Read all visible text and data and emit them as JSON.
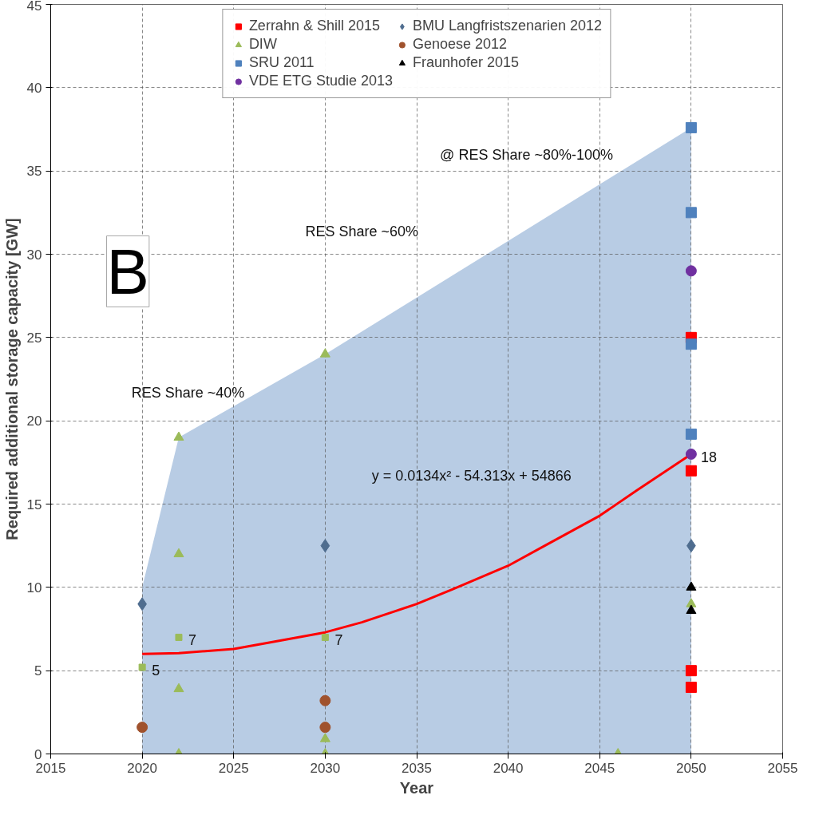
{
  "chart_data": {
    "type": "scatter",
    "xlabel": "Year",
    "ylabel": "Required additional storage capacity [GW]",
    "xlim": [
      2015,
      2055
    ],
    "ylim": [
      0,
      45
    ],
    "xticks": [
      2015,
      2020,
      2025,
      2030,
      2035,
      2040,
      2045,
      2050,
      2055
    ],
    "yticks": [
      0,
      5,
      10,
      15,
      20,
      25,
      30,
      35,
      40,
      45
    ],
    "grid": true,
    "legend": "top",
    "series": [
      {
        "type": "area",
        "color": "#b8cce4",
        "x": [
          2020,
          2022,
          2030,
          2050
        ],
        "values": [
          10,
          19,
          24,
          37.6
        ]
      },
      {
        "type": "line",
        "color": "#ff0000",
        "x": [
          2020,
          2022,
          2025,
          2027,
          2030,
          2032,
          2035,
          2037,
          2040,
          2042,
          2045,
          2047,
          2050
        ],
        "values": [
          6.0,
          6.05,
          6.3,
          6.7,
          7.3,
          7.9,
          9.0,
          9.9,
          11.3,
          12.5,
          14.3,
          15.8,
          18.0
        ]
      },
      {
        "name": "Zerrahn & Shill 2015",
        "marker": "square",
        "color": "#ff0000",
        "x": [
          2050,
          2050,
          2050,
          2050
        ],
        "values": [
          25,
          17,
          5,
          4
        ]
      },
      {
        "name": "DIW",
        "marker": "triangle",
        "color": "#9bbb59",
        "x": [
          2022,
          2022,
          2022,
          2022,
          2030,
          2030,
          2030,
          2046,
          2050
        ],
        "values": [
          19,
          12,
          3.9,
          0,
          24,
          0.9,
          0,
          0,
          9
        ]
      },
      {
        "name": "SRU 2011",
        "marker": "square",
        "color": "#4f81bd",
        "x": [
          2050,
          2050,
          2050,
          2050
        ],
        "values": [
          37.6,
          32.5,
          24.6,
          19.2
        ]
      },
      {
        "name": "VDE ETG Studie 2013",
        "marker": "circle",
        "color": "#7030a0",
        "x": [
          2050,
          2050
        ],
        "values": [
          29,
          18
        ],
        "value_labels": [
          null,
          "18"
        ]
      },
      {
        "name": "BMU Langfristszenarien 2012",
        "marker": "diamond",
        "color": "#4f6d8f",
        "x": [
          2020,
          2030,
          2050
        ],
        "values": [
          9,
          12.5,
          12.5
        ]
      },
      {
        "name": "Genoese 2012",
        "marker": "circle",
        "color": "#a0522d",
        "x": [
          2020,
          2030,
          2030
        ],
        "values": [
          1.6,
          3.2,
          1.6
        ]
      },
      {
        "name": "Fraunhofer 2015",
        "marker": "triangle",
        "color": "#000000",
        "x": [
          2050,
          2050
        ],
        "values": [
          10,
          8.6
        ]
      },
      {
        "marker": "square",
        "color": "#9bbb59",
        "x": [
          2020,
          2022,
          2030
        ],
        "values": [
          5.2,
          7,
          7
        ],
        "value_labels": [
          "5",
          "7",
          "7"
        ]
      }
    ],
    "annotations": [
      "RES Share ~40%",
      "RES Share ~60%",
      "@ RES Share ~80%-100%",
      "y = 0.0134x² - 54.313x + 54866",
      "B"
    ]
  }
}
